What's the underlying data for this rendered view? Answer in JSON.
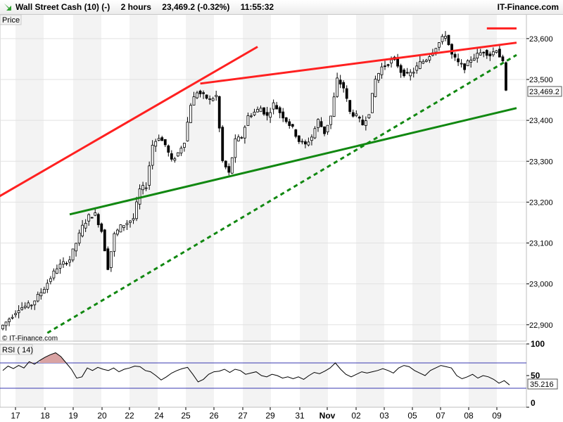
{
  "header": {
    "instrument": "Wall Street Cash (10) (-)",
    "timeframe": "2 hours",
    "last_change": "23,469.2 (-0.32%)",
    "time": "11:55:32",
    "brand": "IT-Finance.com"
  },
  "chart_data": {
    "type": "candlestick",
    "price_panel": {
      "label": "Price",
      "watermark": "© IT-Finance.com",
      "ylim": [
        22860,
        23660
      ],
      "y_ticks": [
        22900,
        23000,
        23100,
        23200,
        23300,
        23400,
        23500,
        23600
      ],
      "y_tick_labels": [
        "22,900",
        "23,000",
        "23,100",
        "23,200",
        "23,300",
        "23,400",
        "23,500",
        "23,600"
      ],
      "last_price": 23469.2,
      "last_price_label": "23,469.2",
      "path_points": [
        [
          0,
          22890
        ],
        [
          6,
          22940
        ],
        [
          10,
          22950
        ],
        [
          14,
          22990
        ],
        [
          18,
          23040
        ],
        [
          22,
          23060
        ],
        [
          26,
          23140
        ],
        [
          28,
          23165
        ],
        [
          30,
          23170
        ],
        [
          32,
          23130
        ],
        [
          34,
          23040
        ],
        [
          36,
          23120
        ],
        [
          38,
          23140
        ],
        [
          40,
          23150
        ],
        [
          42,
          23160
        ],
        [
          44,
          23230
        ],
        [
          46,
          23240
        ],
        [
          48,
          23340
        ],
        [
          50,
          23360
        ],
        [
          52,
          23340
        ],
        [
          54,
          23300
        ],
        [
          56,
          23320
        ],
        [
          58,
          23350
        ],
        [
          60,
          23440
        ],
        [
          62,
          23470
        ],
        [
          64,
          23460
        ],
        [
          66,
          23450
        ],
        [
          68,
          23460
        ],
        [
          70,
          23300
        ],
        [
          72,
          23270
        ],
        [
          74,
          23350
        ],
        [
          76,
          23360
        ],
        [
          78,
          23410
        ],
        [
          80,
          23420
        ],
        [
          82,
          23430
        ],
        [
          84,
          23410
        ],
        [
          86,
          23440
        ],
        [
          88,
          23420
        ],
        [
          90,
          23400
        ],
        [
          92,
          23380
        ],
        [
          94,
          23350
        ],
        [
          96,
          23340
        ],
        [
          98,
          23360
        ],
        [
          100,
          23400
        ],
        [
          102,
          23370
        ],
        [
          104,
          23410
        ],
        [
          106,
          23500
        ],
        [
          108,
          23480
        ],
        [
          110,
          23420
        ],
        [
          112,
          23410
        ],
        [
          114,
          23390
        ],
        [
          116,
          23420
        ],
        [
          118,
          23500
        ],
        [
          120,
          23530
        ],
        [
          122,
          23540
        ],
        [
          124,
          23550
        ],
        [
          126,
          23520
        ],
        [
          128,
          23510
        ],
        [
          130,
          23520
        ],
        [
          132,
          23540
        ],
        [
          134,
          23550
        ],
        [
          136,
          23570
        ],
        [
          138,
          23590
        ],
        [
          140,
          23610
        ],
        [
          142,
          23560
        ],
        [
          144,
          23540
        ],
        [
          146,
          23530
        ],
        [
          148,
          23550
        ],
        [
          150,
          23560
        ],
        [
          152,
          23570
        ],
        [
          154,
          23560
        ],
        [
          156,
          23575
        ],
        [
          158,
          23540
        ],
        [
          159,
          23469.2
        ]
      ],
      "trendlines": [
        {
          "color": "#ff2020",
          "style": "solid",
          "from": [
            -2,
            23210
          ],
          "to": [
            80,
            23580
          ]
        },
        {
          "color": "#ff2020",
          "style": "solid",
          "from": [
            62,
            23490
          ],
          "to": [
            180,
            23590
          ]
        },
        {
          "color": "#ff2020",
          "style": "solid",
          "from": [
            152,
            23625
          ],
          "to": [
            180,
            23625
          ]
        },
        {
          "color": "#118811",
          "style": "solid",
          "from": [
            21,
            23170
          ],
          "to": [
            180,
            23430
          ]
        },
        {
          "color": "#118811",
          "style": "dashed",
          "from": [
            14,
            22880
          ],
          "to": [
            180,
            23560
          ]
        }
      ]
    },
    "rsi_panel": {
      "label": "RSI ( 14)",
      "ylim": [
        0,
        100
      ],
      "y_ticks": [
        0,
        50,
        100
      ],
      "y_tick_labels": [
        "0",
        "50",
        "100"
      ],
      "bands": [
        70,
        30
      ],
      "last_value": 35.216,
      "last_value_label": "35.216",
      "values": [
        58,
        65,
        61,
        66,
        62,
        72,
        68,
        74,
        79,
        83,
        86,
        80,
        70,
        60,
        46,
        48,
        62,
        58,
        63,
        60,
        58,
        62,
        56,
        60,
        62,
        65,
        64,
        58,
        56,
        50,
        43,
        48,
        54,
        58,
        61,
        63,
        52,
        40,
        44,
        52,
        56,
        57,
        60,
        55,
        60,
        58,
        52,
        54,
        56,
        50,
        48,
        52,
        50,
        46,
        48,
        45,
        48,
        44,
        50,
        55,
        53,
        57,
        62,
        70,
        60,
        52,
        48,
        52,
        56,
        54,
        56,
        58,
        61,
        58,
        54,
        62,
        66,
        64,
        58,
        54,
        50,
        58,
        62,
        66,
        64,
        62,
        50,
        45,
        48,
        52,
        46,
        50,
        48,
        44,
        38,
        42,
        35.216
      ]
    },
    "x_axis": {
      "tick_labels": [
        "17",
        "18",
        "19",
        "20",
        "22",
        "24",
        "25",
        "26",
        "27",
        "29",
        "31",
        "Nov",
        "02",
        "03",
        "05",
        "07",
        "08",
        "09"
      ],
      "tick_positions": [
        22,
        64,
        104,
        145,
        184,
        226,
        264,
        304,
        345,
        384,
        426,
        465,
        506,
        546,
        586,
        626,
        666,
        706
      ]
    }
  }
}
